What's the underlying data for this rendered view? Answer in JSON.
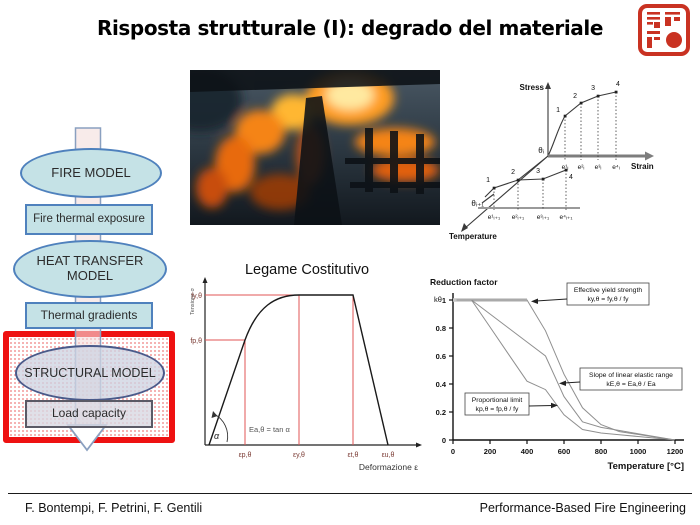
{
  "page": {
    "title": "Risposta strutturale (I): degrado del materiale",
    "footer_left": "F. Bontempi, F. Petrini, F. Gentili",
    "footer_right": "Performance-Based Fire Engineering"
  },
  "colors": {
    "title_text": "#000000",
    "node_fill": "#c5e2e6",
    "node_border": "#4f81bd",
    "arrow_fill": "#f6e4e2",
    "arrow_border": "#8aa0c0",
    "highlight_red": "#ee1111",
    "seal_red": "#c93222",
    "chart_red_line": "#e05555",
    "curve_gray": "#8f8f8f"
  },
  "flowchart": {
    "fire_model": "FIRE MODEL",
    "fire_thermal_exposure": "Fire thermal exposure",
    "heat_transfer_model": "HEAT TRANSFER MODEL",
    "thermal_gradients": "Thermal gradients",
    "structural_model": "STRUCTURAL MODEL",
    "load_capacity": "Load capacity"
  },
  "stress_diagram": {
    "stress_label": "Stress",
    "strain_label": "Strain",
    "temperature_label": "Temperature",
    "theta_i": "θᵢ",
    "theta_i_plus_1": "θᵢ₊₁",
    "upper_point_labels": [
      "1",
      "2",
      "3",
      "4"
    ],
    "lower_point_labels": [
      "1",
      "2",
      "3",
      "4"
    ],
    "upper_strain_labels": [
      "e¹ᵢ",
      "e²ᵢ",
      "e³ᵢ",
      "e⁴ᵢ"
    ],
    "lower_strain_labels": [
      "e¹ᵢ₊₁",
      "e²ᵢ₊₁",
      "e³ᵢ₊₁",
      "e⁴ᵢ₊₁"
    ]
  },
  "chart_data": [
    {
      "type": "line",
      "title": "Legame Costitutivo",
      "xlabel": "Deformazione ε",
      "ylabel": "Tensione σ",
      "x_tick_labels": [
        "εp,θ",
        "εy,θ",
        "εt,θ",
        "εu,θ"
      ],
      "y_tick_labels": [
        "fy,θ",
        "fp,θ"
      ],
      "angle_label": "α",
      "modulus_label": "Ea,θ = tan α",
      "curve_norm_points": [
        [
          0,
          0
        ],
        [
          0.2,
          0.55
        ],
        [
          0.5,
          1.0
        ],
        [
          0.79,
          1.0
        ],
        [
          0.98,
          0
        ]
      ]
    },
    {
      "type": "line",
      "title": "Reduction factor",
      "ylabel": "kθ",
      "xlabel": "Temperature [°C]",
      "xlim": [
        0,
        1200
      ],
      "ylim": [
        0,
        1
      ],
      "xticks": [
        0,
        200,
        400,
        600,
        800,
        1000,
        1200
      ],
      "yticks": [
        0,
        0.2,
        0.4,
        0.6,
        0.8,
        1
      ],
      "x": [
        20,
        100,
        200,
        300,
        400,
        500,
        600,
        700,
        800,
        900,
        1000,
        1100,
        1200
      ],
      "series": [
        {
          "name": "Effective yield strength",
          "values": [
            1,
            1,
            1,
            1,
            1,
            0.78,
            0.47,
            0.23,
            0.11,
            0.06,
            0.04,
            0.02,
            0
          ]
        },
        {
          "name": "Slope of linear elastic range",
          "values": [
            1,
            1,
            0.9,
            0.8,
            0.7,
            0.6,
            0.31,
            0.13,
            0.09,
            0.0675,
            0.045,
            0.0225,
            0
          ]
        },
        {
          "name": "Proportional limit",
          "values": [
            1,
            1,
            0.807,
            0.613,
            0.42,
            0.36,
            0.18,
            0.075,
            0.05,
            0.0375,
            0.025,
            0.0125,
            0
          ]
        }
      ],
      "annotations": [
        {
          "line1": "Effective yield strength",
          "line2": "ky,θ = fy,θ / fy"
        },
        {
          "line1": "Slope of linear elastic range",
          "line2": "kE,θ = Ea,θ / Ea"
        },
        {
          "line1": "Proportional limit",
          "line2": "kp,θ = fp,θ / fy"
        }
      ],
      "legend_position": "callouts",
      "grid": false
    }
  ]
}
